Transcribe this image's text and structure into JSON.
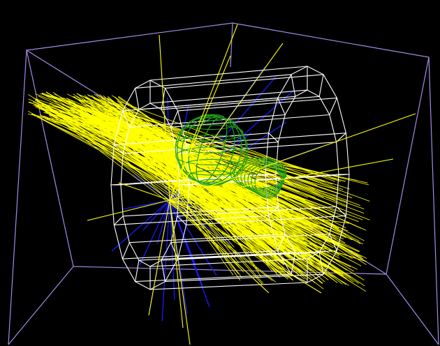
{
  "scene": {
    "background": "#000000",
    "colors": {
      "world_box": "#a48ae6",
      "detector": "#ffffff",
      "tracks_charged": "#ffff00",
      "tracks_neutral": "#1a1aff",
      "sphere": "#1f9a1f"
    },
    "objects": [
      "world-volume-box",
      "cylinder-detector",
      "sphere-volume",
      "particle-tracks"
    ]
  }
}
